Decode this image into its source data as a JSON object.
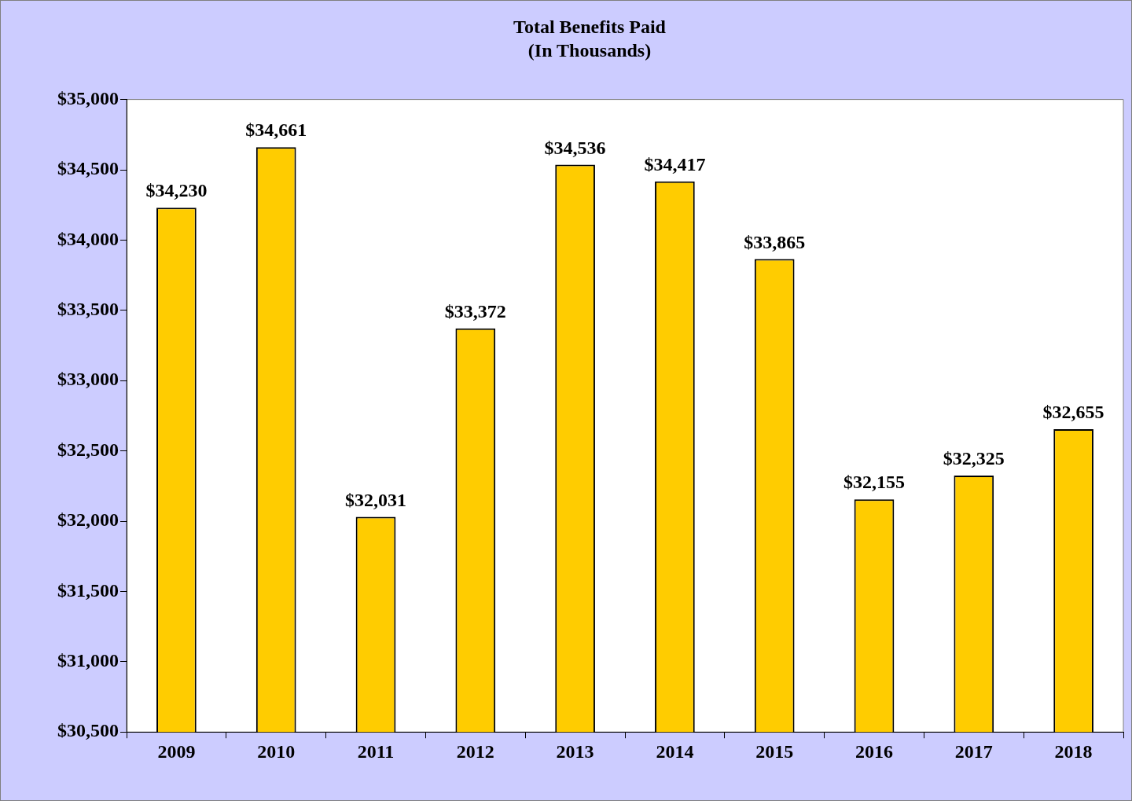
{
  "chart_data": {
    "type": "bar",
    "title": "Total Benefits Paid",
    "subtitle": "(In Thousands)",
    "categories": [
      "2009",
      "2010",
      "2011",
      "2012",
      "2013",
      "2014",
      "2015",
      "2016",
      "2017",
      "2018"
    ],
    "values": [
      34230,
      34661,
      32031,
      33372,
      34536,
      34417,
      33865,
      32155,
      32325,
      32655
    ],
    "value_labels": [
      "$34,230",
      "$34,661",
      "$32,031",
      "$33,372",
      "$34,536",
      "$34,417",
      "$33,865",
      "$32,155",
      "$32,325",
      "$32,655"
    ],
    "color": "#ffcc00",
    "ylim": [
      30500,
      35000
    ],
    "yticks": [
      {
        "value": 30500,
        "label": "$30,500"
      },
      {
        "value": 31000,
        "label": "$31,000"
      },
      {
        "value": 31500,
        "label": "$31,500"
      },
      {
        "value": 32000,
        "label": "$32,000"
      },
      {
        "value": 32500,
        "label": "$32,500"
      },
      {
        "value": 33000,
        "label": "$33,000"
      },
      {
        "value": 33500,
        "label": "$33,500"
      },
      {
        "value": 34000,
        "label": "$34,000"
      },
      {
        "value": 34500,
        "label": "$34,500"
      },
      {
        "value": 35000,
        "label": "$35,000"
      }
    ],
    "grid": false,
    "legend": false
  }
}
